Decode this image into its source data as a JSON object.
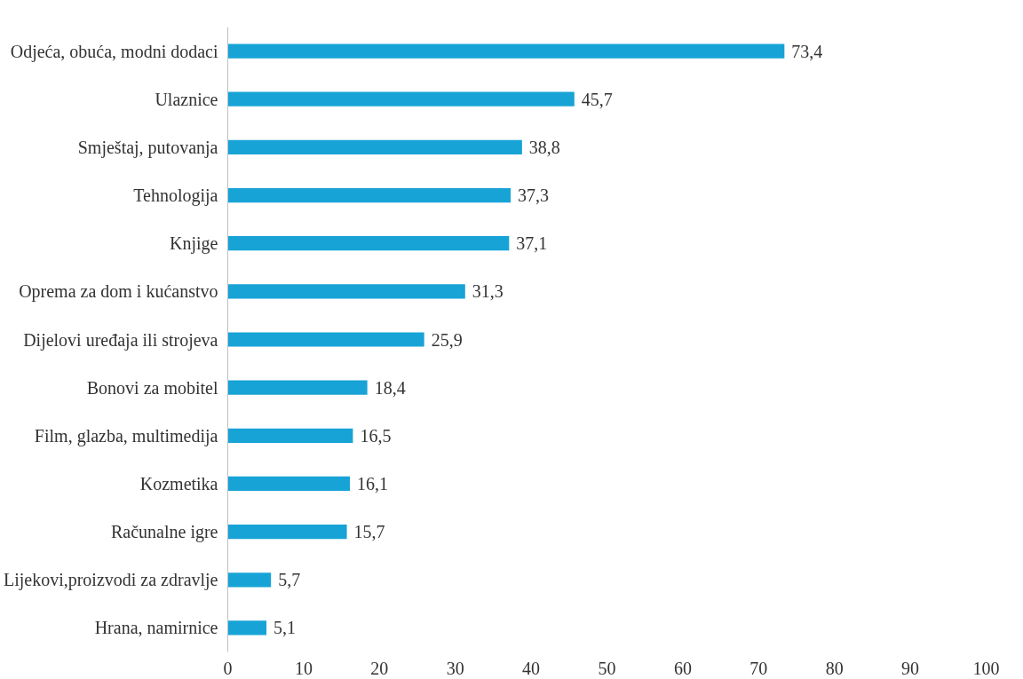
{
  "chart_data": {
    "type": "bar",
    "orientation": "horizontal",
    "categories": [
      "Odjeća, obuća, modni dodaci",
      "Ulaznice",
      "Smještaj, putovanja",
      "Tehnologija",
      "Knjige",
      "Oprema za dom i kućanstvo",
      "Dijelovi uređaja ili strojeva",
      "Bonovi za mobitel",
      "Film, glazba, multimedija",
      "Kozmetika",
      "Računalne igre",
      "Lijekovi,proizvodi za zdravlje",
      "Hrana, namirnice"
    ],
    "values": [
      73.4,
      45.7,
      38.8,
      37.3,
      37.1,
      31.3,
      25.9,
      18.4,
      16.5,
      16.1,
      15.7,
      5.7,
      5.1
    ],
    "value_labels": [
      "73,4",
      "45,7",
      "38,8",
      "37,3",
      "37,1",
      "31,3",
      "25,9",
      "18,4",
      "16,5",
      "16,1",
      "15,7",
      "5,7",
      "5,1"
    ],
    "color": "#17a3d6",
    "xlim": [
      0,
      100
    ],
    "xticks": [
      0,
      10,
      20,
      30,
      40,
      50,
      60,
      70,
      80,
      90,
      100
    ],
    "grid": false
  }
}
